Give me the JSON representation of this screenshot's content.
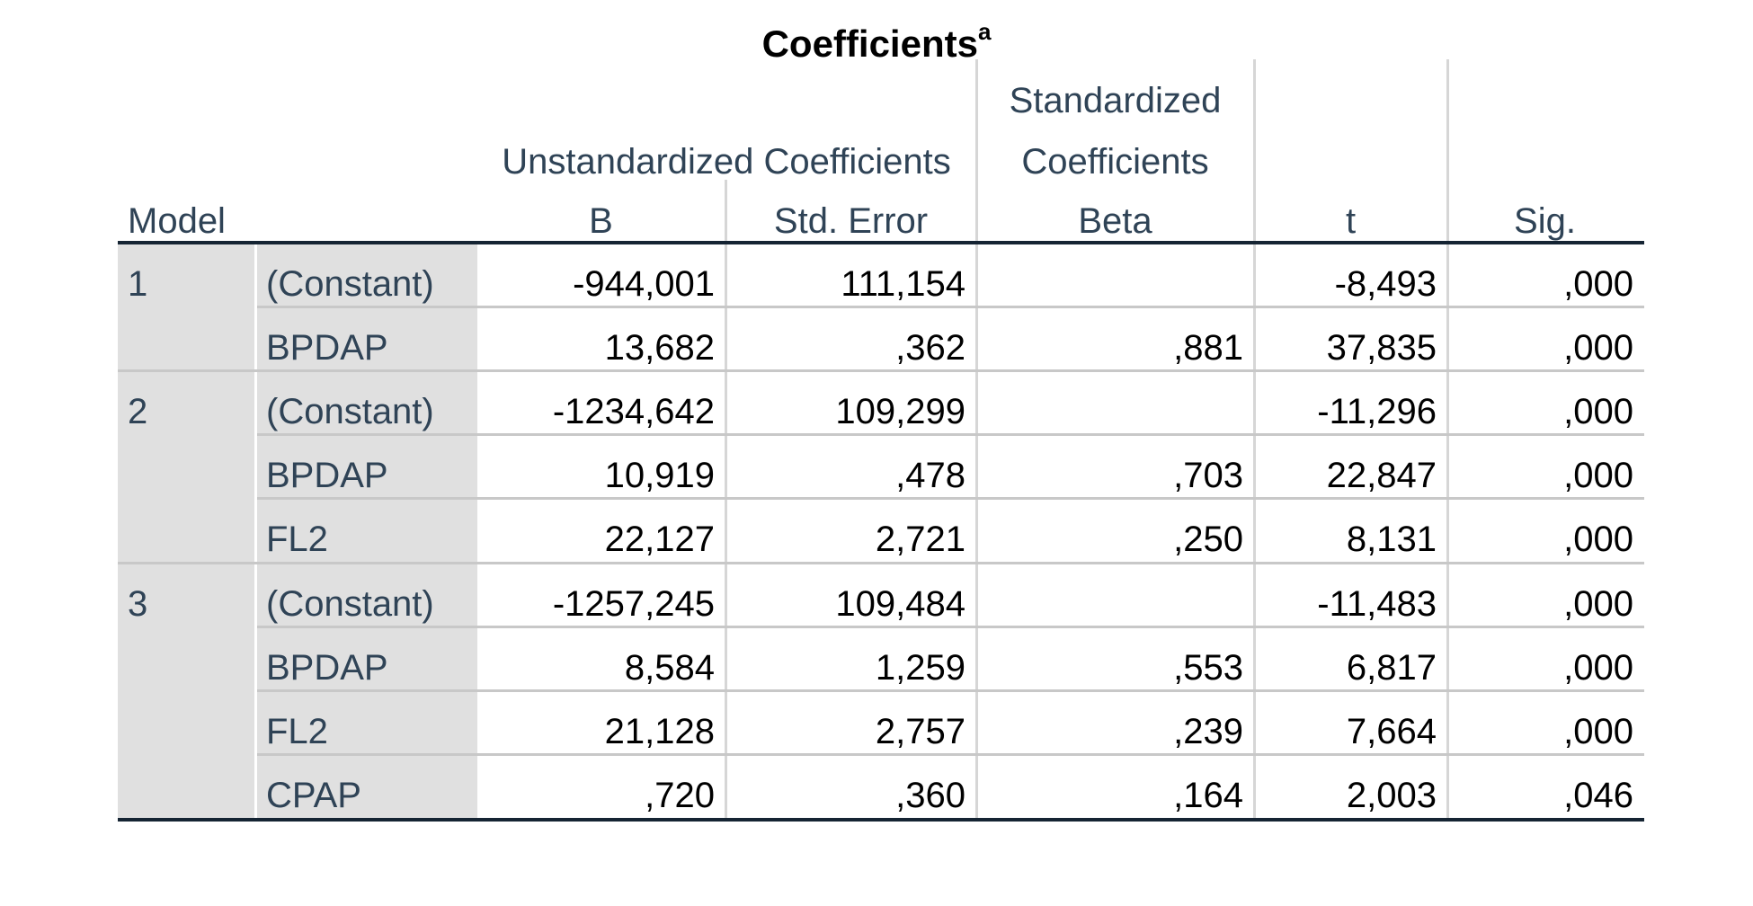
{
  "table": {
    "title": "Coefficients",
    "title_footnote": "a",
    "headers": {
      "model": "Model",
      "unstd_group": "Unstandardized Coefficients",
      "std_group_line1": "Standardized",
      "std_group_line2": "Coefficients",
      "b": "B",
      "std_error": "Std. Error",
      "beta": "Beta",
      "t": "t",
      "sig": "Sig."
    },
    "rows": [
      {
        "model": "1",
        "var": "(Constant)",
        "b": "-944,001",
        "se": "111,154",
        "beta": "",
        "t": "-8,493",
        "sig": ",000"
      },
      {
        "model": "",
        "var": "BPDAP",
        "b": "13,682",
        "se": ",362",
        "beta": ",881",
        "t": "37,835",
        "sig": ",000"
      },
      {
        "model": "2",
        "var": "(Constant)",
        "b": "-1234,642",
        "se": "109,299",
        "beta": "",
        "t": "-11,296",
        "sig": ",000"
      },
      {
        "model": "",
        "var": "BPDAP",
        "b": "10,919",
        "se": ",478",
        "beta": ",703",
        "t": "22,847",
        "sig": ",000"
      },
      {
        "model": "",
        "var": "FL2",
        "b": "22,127",
        "se": "2,721",
        "beta": ",250",
        "t": "8,131",
        "sig": ",000"
      },
      {
        "model": "3",
        "var": "(Constant)",
        "b": "-1257,245",
        "se": "109,484",
        "beta": "",
        "t": "-11,483",
        "sig": ",000"
      },
      {
        "model": "",
        "var": "BPDAP",
        "b": "8,584",
        "se": "1,259",
        "beta": ",553",
        "t": "6,817",
        "sig": ",000"
      },
      {
        "model": "",
        "var": "FL2",
        "b": "21,128",
        "se": "2,757",
        "beta": ",239",
        "t": "7,664",
        "sig": ",000"
      },
      {
        "model": "",
        "var": "CPAP",
        "b": ",720",
        "se": ",360",
        "beta": ",164",
        "t": "2,003",
        "sig": ",046"
      }
    ]
  }
}
